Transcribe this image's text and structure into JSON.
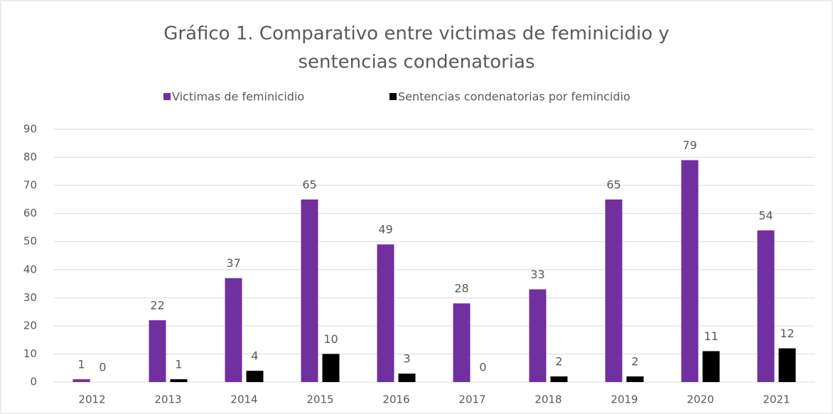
{
  "chart_data": {
    "type": "bar",
    "title": [
      "Gráfico 1. Comparativo entre victimas de feminicidio y",
      "sentencias condenatorias"
    ],
    "categories": [
      "2012",
      "2013",
      "2014",
      "2015",
      "2016",
      "2017",
      "2018",
      "2019",
      "2020",
      "2021"
    ],
    "series": [
      {
        "name": "Victimas de feminicidio",
        "color": "#7030a0",
        "values": [
          1,
          22,
          37,
          65,
          49,
          28,
          33,
          65,
          79,
          54
        ]
      },
      {
        "name": "Sentencias condenatorias por femincidio",
        "color": "#000000",
        "values": [
          0,
          1,
          4,
          10,
          3,
          0,
          2,
          2,
          11,
          12
        ]
      }
    ],
    "ylim": [
      0,
      90
    ],
    "yticks": [
      0,
      10,
      20,
      30,
      40,
      50,
      60,
      70,
      80,
      90
    ],
    "grid": true,
    "legend": "top"
  }
}
